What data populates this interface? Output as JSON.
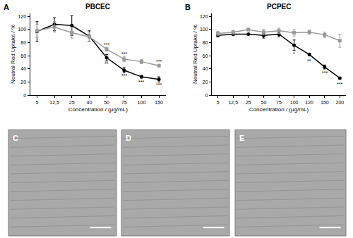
{
  "chart_data": [
    {
      "type": "line",
      "panel_label": "A",
      "title": "PBCEC",
      "x_label": "Concentration / (µg/mL)",
      "y_label": "Neutral Red Uptake / %",
      "categories": [
        "5",
        "12,5",
        "25",
        "40",
        "50",
        "75",
        "100",
        "150"
      ],
      "ylim": [
        0,
        125
      ],
      "yticks": [
        0,
        20,
        40,
        60,
        80,
        100,
        120
      ],
      "grid": false,
      "series": [
        {
          "color": "#000000",
          "marker": "circle",
          "line_style": "solid",
          "values": [
            97,
            108,
            106,
            90,
            57,
            38,
            28,
            24
          ],
          "errors": [
            15,
            10,
            15,
            8,
            5,
            4,
            2,
            4
          ]
        },
        {
          "color": "#999999",
          "marker": "square",
          "line_style": "solid",
          "values": [
            98,
            104,
            95,
            89,
            70,
            55,
            51,
            45
          ],
          "errors": [
            10,
            8,
            8,
            7,
            3,
            4,
            3,
            2
          ]
        }
      ],
      "annotations": [
        {
          "x": "50",
          "y": 77,
          "text": "***"
        },
        {
          "x": "50",
          "y": 48,
          "text": "**"
        },
        {
          "x": "75",
          "y": 63,
          "text": "***"
        },
        {
          "x": "75",
          "y": 30,
          "text": "***"
        },
        {
          "x": "100",
          "y": 20,
          "text": "***"
        },
        {
          "x": "150",
          "y": 51,
          "text": "***"
        },
        {
          "x": "150",
          "y": 16,
          "text": "***"
        }
      ]
    },
    {
      "type": "line",
      "panel_label": "B",
      "title": "PCPEC",
      "x_label": "Concentration / (µg/mL)",
      "y_label": "Neutral Red Uptake / %",
      "categories": [
        "5",
        "12,5",
        "25",
        "50",
        "75",
        "100",
        "120",
        "150",
        "200"
      ],
      "ylim": [
        0,
        125
      ],
      "yticks": [
        0,
        20,
        40,
        60,
        80,
        100,
        120
      ],
      "grid": false,
      "series": [
        {
          "color": "#000000",
          "marker": "circle",
          "line_style": "solid",
          "values": [
            91,
            93,
            93,
            91,
            93,
            76,
            62,
            43,
            26
          ],
          "errors": [
            2,
            2,
            1,
            4,
            4,
            8,
            2,
            3,
            1
          ]
        },
        {
          "color": "#999999",
          "marker": "square",
          "line_style": "solid",
          "values": [
            94,
            96,
            100,
            96,
            98,
            95,
            96,
            92,
            83
          ],
          "errors": [
            3,
            3,
            2,
            4,
            4,
            5,
            3,
            4,
            10
          ]
        }
      ],
      "annotations": [
        {
          "x": "100",
          "y": 63,
          "text": "*"
        },
        {
          "x": "120",
          "y": 52,
          "text": "**"
        },
        {
          "x": "150",
          "y": 34,
          "text": "***"
        },
        {
          "x": "200",
          "y": 17,
          "text": "***"
        }
      ]
    }
  ],
  "image_panels": [
    "C",
    "D",
    "E"
  ]
}
